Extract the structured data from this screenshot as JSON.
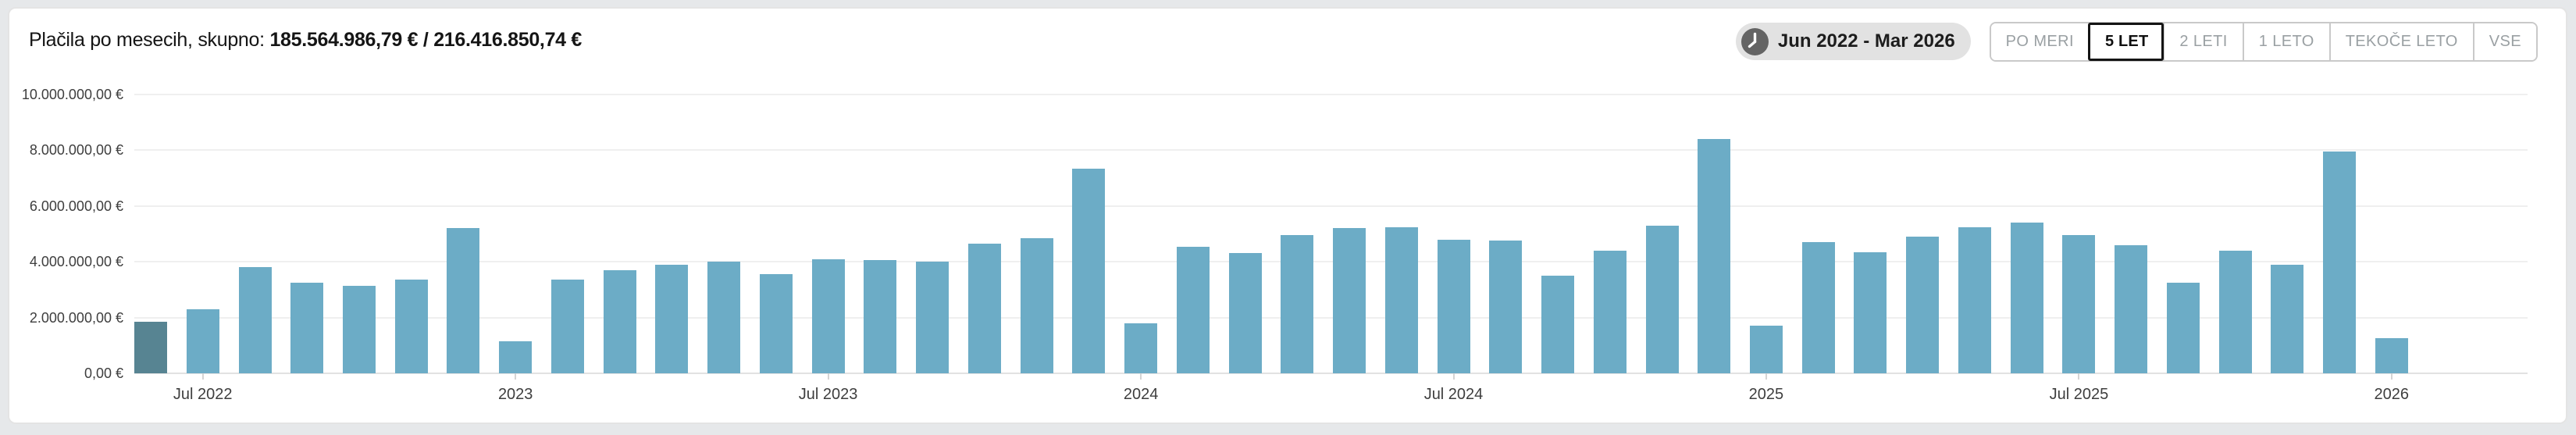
{
  "header": {
    "title_prefix": "Plačila po mesecih, skupno: ",
    "title_amount": "185.564.986,79 € / 216.416.850,74 €",
    "date_range_badge": "Jun 2022 - Mar 2026",
    "range_buttons": [
      {
        "label": "PO MERI",
        "active": false
      },
      {
        "label": "5 LET",
        "active": true
      },
      {
        "label": "2 LETI",
        "active": false
      },
      {
        "label": "1 LETO",
        "active": false
      },
      {
        "label": "TEKOČE LETO",
        "active": false
      },
      {
        "label": "VSE",
        "active": false
      }
    ]
  },
  "colors": {
    "bar": "#6cacc6",
    "bar_highlight": "#578492",
    "card_bg": "#ffffff",
    "page_bg": "#e6e8ea",
    "badge_bg": "#e2e2e2",
    "gridline": "#efefef",
    "axis_line": "#e2e2e2",
    "inactive_button_text": "#9aa0a3",
    "active_button_border": "#141414"
  },
  "chart_data": {
    "type": "bar",
    "title": "Plačila po mesecih",
    "currency": "EUR",
    "ylim": [
      0,
      10000000
    ],
    "grid": true,
    "legend": "none",
    "y_tick_labels": [
      "10.000.000,00 €",
      "8.000.000,00 €",
      "6.000.000,00 €",
      "4.000.000,00 €",
      "2.000.000,00 €",
      "0,00 €"
    ],
    "y_tick_values": [
      10000000,
      8000000,
      6000000,
      4000000,
      2000000,
      0
    ],
    "x_tick_labels": [
      {
        "index": 1,
        "label": "Jul 2022"
      },
      {
        "index": 7,
        "label": "2023"
      },
      {
        "index": 13,
        "label": "Jul 2023"
      },
      {
        "index": 19,
        "label": "2024"
      },
      {
        "index": 25,
        "label": "Jul 2024"
      },
      {
        "index": 31,
        "label": "2025"
      },
      {
        "index": 37,
        "label": "Jul 2025"
      },
      {
        "index": 43,
        "label": "2026"
      }
    ],
    "highlighted_index": 0,
    "categories": [
      "Jun 2022",
      "Jul 2022",
      "Aug 2022",
      "Sep 2022",
      "Oct 2022",
      "Nov 2022",
      "Dec 2022",
      "Jan 2023",
      "Feb 2023",
      "Mar 2023",
      "Apr 2023",
      "May 2023",
      "Jun 2023",
      "Jul 2023",
      "Aug 2023",
      "Sep 2023",
      "Oct 2023",
      "Nov 2023",
      "Dec 2023",
      "Jan 2024",
      "Feb 2024",
      "Mar 2024",
      "Apr 2024",
      "May 2024",
      "Jun 2024",
      "Jul 2024",
      "Aug 2024",
      "Sep 2024",
      "Oct 2024",
      "Nov 2024",
      "Dec 2024",
      "Jan 2025",
      "Feb 2025",
      "Mar 2025",
      "Apr 2025",
      "May 2025",
      "Jun 2025",
      "Jul 2025",
      "Aug 2025",
      "Sep 2025",
      "Oct 2025",
      "Nov 2025",
      "Dec 2025",
      "Jan 2026",
      "Feb 2026",
      "Mar 2026"
    ],
    "values": [
      1850000,
      2300000,
      3800000,
      3250000,
      3150000,
      3350000,
      5200000,
      1150000,
      3350000,
      3700000,
      3900000,
      4000000,
      3550000,
      4100000,
      4050000,
      4000000,
      4650000,
      4850000,
      7350000,
      1800000,
      4550000,
      4300000,
      4950000,
      5200000,
      5250000,
      4800000,
      4750000,
      3500000,
      4400000,
      5300000,
      8400000,
      1700000,
      4700000,
      4350000,
      4900000,
      5250000,
      5400000,
      4950000,
      4600000,
      3250000,
      4400000,
      3900000,
      7950000,
      1250000,
      0,
      0
    ]
  }
}
